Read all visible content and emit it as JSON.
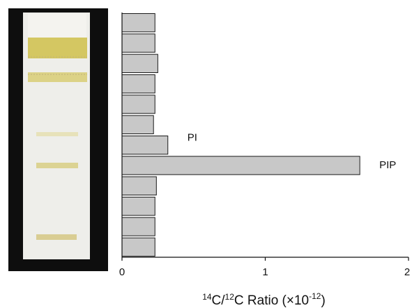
{
  "figure": {
    "colors": {
      "plate_background": "#0e0e0e",
      "plate_surface": "#eeeeea",
      "band_yellow": "#cfc04a",
      "band_pale": "#d9cf8a",
      "bar_fill": "#c8c8c8",
      "bar_stroke": "#1a1a1a",
      "axis": "#111111"
    }
  },
  "chart_data": {
    "type": "bar",
    "orientation": "horizontal",
    "bins": 12,
    "values": [
      0.23,
      0.23,
      0.25,
      0.23,
      0.23,
      0.22,
      0.32,
      1.66,
      0.24,
      0.23,
      0.23,
      0.23
    ],
    "annotations": [
      {
        "bin": 6,
        "text": "PI"
      },
      {
        "bin": 7,
        "text": "PIP"
      }
    ],
    "xlim": [
      0,
      2
    ],
    "xticks": [
      0,
      1,
      2
    ],
    "xlabel": {
      "pre": "",
      "iso1": "14",
      "c1": "C/",
      "iso2": "12",
      "c2": "C Ratio (",
      "mult": "×",
      "base": "10",
      "exp": "-12",
      "close": ")"
    },
    "ylabel": "",
    "grid": false
  }
}
